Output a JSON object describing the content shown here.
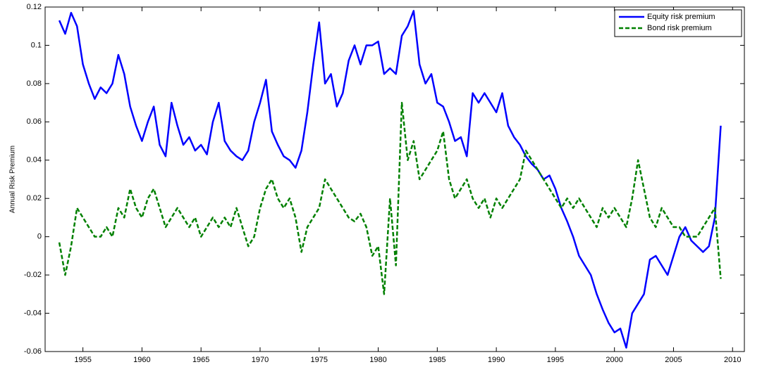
{
  "chart_data": {
    "type": "line",
    "y_label": "Annual Risk Premium",
    "xlim": [
      1951.8,
      2011
    ],
    "ylim": [
      -0.06,
      0.12
    ],
    "xticks": [
      1955,
      1960,
      1965,
      1970,
      1975,
      1980,
      1985,
      1990,
      1995,
      2000,
      2005,
      2010
    ],
    "yticks": [
      -0.06,
      -0.04,
      -0.02,
      0,
      0.02,
      0.04,
      0.06,
      0.08,
      0.1,
      0.12
    ],
    "grid": false,
    "legend": "top-right",
    "x": [
      1953,
      1953.5,
      1954,
      1954.5,
      1955,
      1955.5,
      1956,
      1956.5,
      1957,
      1957.5,
      1958,
      1958.5,
      1959,
      1959.5,
      1960,
      1960.5,
      1961,
      1961.5,
      1962,
      1962.5,
      1963,
      1963.5,
      1964,
      1964.5,
      1965,
      1965.5,
      1966,
      1966.5,
      1967,
      1967.5,
      1968,
      1968.5,
      1969,
      1969.5,
      1970,
      1970.5,
      1971,
      1971.5,
      1972,
      1972.5,
      1973,
      1973.5,
      1974,
      1974.5,
      1975,
      1975.5,
      1976,
      1976.5,
      1977,
      1977.5,
      1978,
      1978.5,
      1979,
      1979.5,
      1980,
      1980.5,
      1981,
      1981.5,
      1982,
      1982.5,
      1983,
      1983.5,
      1984,
      1984.5,
      1985,
      1985.5,
      1986,
      1986.5,
      1987,
      1987.5,
      1988,
      1988.5,
      1989,
      1989.5,
      1990,
      1990.5,
      1991,
      1991.5,
      1992,
      1992.5,
      1993,
      1993.5,
      1994,
      1994.5,
      1995,
      1995.5,
      1996,
      1996.5,
      1997,
      1997.5,
      1998,
      1998.5,
      1999,
      1999.5,
      2000,
      2000.5,
      2001,
      2001.5,
      2002,
      2002.5,
      2003,
      2003.5,
      2004,
      2004.5,
      2005,
      2005.5,
      2006,
      2006.5,
      2007,
      2007.5,
      2008,
      2008.5,
      2009
    ],
    "series": [
      {
        "name": "Equity risk premium",
        "color": "#0000ff",
        "dashed": false,
        "values": [
          0.113,
          0.106,
          0.117,
          0.11,
          0.09,
          0.08,
          0.072,
          0.078,
          0.075,
          0.08,
          0.095,
          0.085,
          0.068,
          0.058,
          0.05,
          0.06,
          0.068,
          0.048,
          0.042,
          0.07,
          0.058,
          0.048,
          0.052,
          0.045,
          0.048,
          0.043,
          0.06,
          0.07,
          0.05,
          0.045,
          0.042,
          0.04,
          0.045,
          0.06,
          0.07,
          0.082,
          0.055,
          0.048,
          0.042,
          0.04,
          0.036,
          0.045,
          0.065,
          0.09,
          0.112,
          0.08,
          0.085,
          0.068,
          0.075,
          0.092,
          0.1,
          0.09,
          0.1,
          0.1,
          0.102,
          0.085,
          0.088,
          0.085,
          0.105,
          0.11,
          0.118,
          0.09,
          0.08,
          0.085,
          0.07,
          0.068,
          0.06,
          0.05,
          0.052,
          0.042,
          0.075,
          0.07,
          0.075,
          0.07,
          0.065,
          0.075,
          0.058,
          0.052,
          0.048,
          0.042,
          0.038,
          0.035,
          0.03,
          0.032,
          0.025,
          0.015,
          0.008,
          0,
          -0.01,
          -0.015,
          -0.02,
          -0.03,
          -0.038,
          -0.045,
          -0.05,
          -0.048,
          -0.058,
          -0.04,
          -0.035,
          -0.03,
          -0.012,
          -0.01,
          -0.015,
          -0.02,
          -0.01,
          0,
          0.005,
          -0.002,
          -0.005,
          -0.008,
          -0.005,
          0.01,
          0.058
        ]
      },
      {
        "name": "Bond risk premium",
        "color": "#008000",
        "dashed": true,
        "values": [
          -0.003,
          -0.02,
          -0.005,
          0.015,
          0.01,
          0.005,
          0,
          0,
          0.005,
          0,
          0.015,
          0.01,
          0.025,
          0.015,
          0.01,
          0.02,
          0.025,
          0.015,
          0.005,
          0.01,
          0.015,
          0.01,
          0.005,
          0.01,
          0,
          0.005,
          0.01,
          0.005,
          0.01,
          0.005,
          0.015,
          0.005,
          -0.005,
          0,
          0.015,
          0.025,
          0.03,
          0.02,
          0.015,
          0.02,
          0.01,
          -0.008,
          0.005,
          0.01,
          0.015,
          0.03,
          0.025,
          0.02,
          0.015,
          0.01,
          0.008,
          0.012,
          0.005,
          -0.01,
          -0.005,
          -0.03,
          0.02,
          -0.015,
          0.07,
          0.04,
          0.05,
          0.03,
          0.035,
          0.04,
          0.045,
          0.055,
          0.03,
          0.02,
          0.025,
          0.03,
          0.02,
          0.015,
          0.02,
          0.01,
          0.02,
          0.015,
          0.02,
          0.025,
          0.03,
          0.045,
          0.04,
          0.035,
          0.03,
          0.025,
          0.02,
          0.015,
          0.02,
          0.015,
          0.02,
          0.015,
          0.01,
          0.005,
          0.015,
          0.01,
          0.015,
          0.01,
          0.005,
          0.02,
          0.04,
          0.025,
          0.01,
          0.005,
          0.015,
          0.01,
          0.005,
          0.005,
          0,
          0,
          0,
          0.005,
          0.01,
          0.015,
          -0.022
        ]
      }
    ]
  }
}
